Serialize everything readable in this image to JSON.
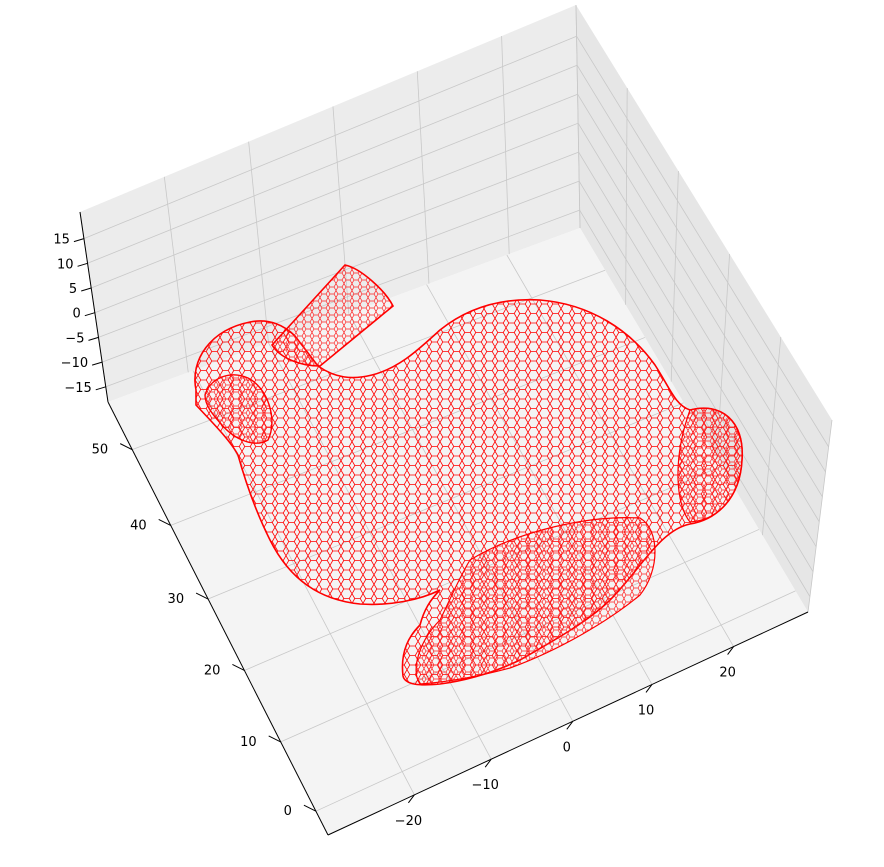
{
  "chart_data": {
    "type": "3d-wireframe",
    "title": "",
    "xlabel": "",
    "ylabel": "",
    "zlabel": "",
    "x_ticks": [
      "−20",
      "−10",
      "0",
      "10",
      "20"
    ],
    "y_ticks": [
      "0",
      "10",
      "20",
      "30",
      "40",
      "50"
    ],
    "z_ticks": [
      "15",
      "10",
      "5",
      "0",
      "−5",
      "−10",
      "−15"
    ],
    "series": [
      {
        "color": "#ff0000",
        "style": "wireframe mesh",
        "object": "bunny"
      }
    ],
    "grid": true,
    "pane_color": "#f2f2f2"
  }
}
